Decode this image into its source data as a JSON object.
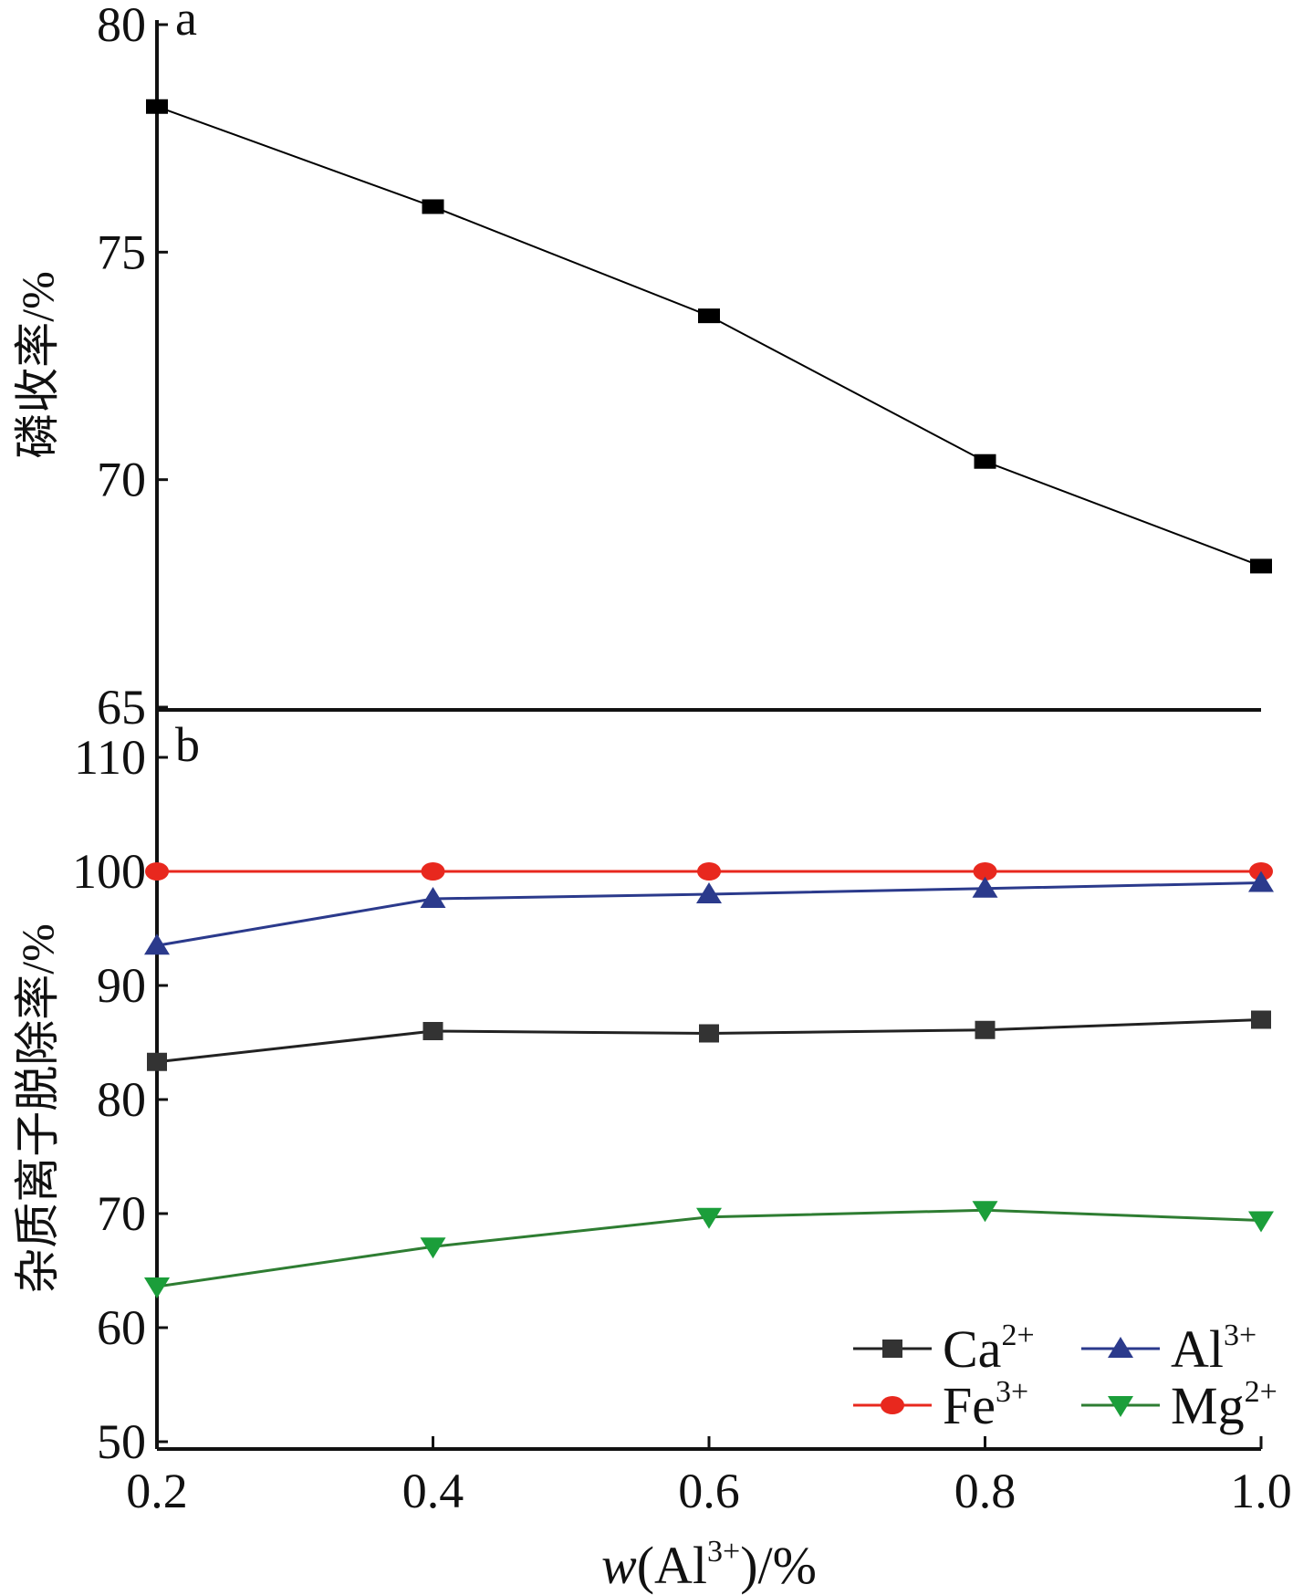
{
  "chart_data": [
    {
      "panel": "a",
      "type": "line",
      "ylabel": "磷收率/%",
      "ylim": [
        65,
        80
      ],
      "yticks": [
        "80",
        "75",
        "70",
        "65"
      ],
      "x": [
        0.2,
        0.4,
        0.6,
        0.8,
        1.0
      ],
      "series": [
        {
          "values": [
            78.2,
            76.0,
            73.6,
            70.4,
            68.1
          ]
        }
      ],
      "colors": {
        "line": "#000000"
      }
    },
    {
      "panel": "b",
      "type": "line",
      "ylabel": "杂质离子脱除率/%",
      "xlabel": {
        "prefix": "w",
        "main": "(Al",
        "sup": "3+",
        "suffix": ")/%"
      },
      "ylim": [
        50,
        110
      ],
      "yticks": [
        "110",
        "100",
        "90",
        "80",
        "70",
        "60",
        "50"
      ],
      "xlim": [
        0.2,
        1.0
      ],
      "xticks": [
        "0.2",
        "0.4",
        "0.6",
        "0.8",
        "1.0"
      ],
      "x": [
        0.2,
        0.4,
        0.6,
        0.8,
        1.0
      ],
      "legend_position": "bottom-right",
      "series": [
        {
          "name": "Ca",
          "sup": "2+",
          "marker": "square",
          "color": "#222222",
          "marker_color": "#333333",
          "values": [
            83.3,
            86.0,
            85.8,
            86.1,
            87.0
          ]
        },
        {
          "name": "Fe",
          "sup": "3+",
          "marker": "circle",
          "color": "#e8281e",
          "marker_color": "#e8281e",
          "values": [
            100.0,
            100.0,
            100.0,
            100.0,
            100.0
          ]
        },
        {
          "name": "Al",
          "sup": "3+",
          "marker": "triangle-up",
          "color": "#2b3a8c",
          "marker_color": "#2b3a8c",
          "values": [
            93.5,
            97.6,
            98.0,
            98.5,
            99.0
          ]
        },
        {
          "name": "Mg",
          "sup": "2+",
          "marker": "triangle-down",
          "color": "#2e7d32",
          "marker_color": "#1b9e3a",
          "values": [
            63.6,
            67.1,
            69.7,
            70.3,
            69.4
          ]
        }
      ]
    }
  ]
}
